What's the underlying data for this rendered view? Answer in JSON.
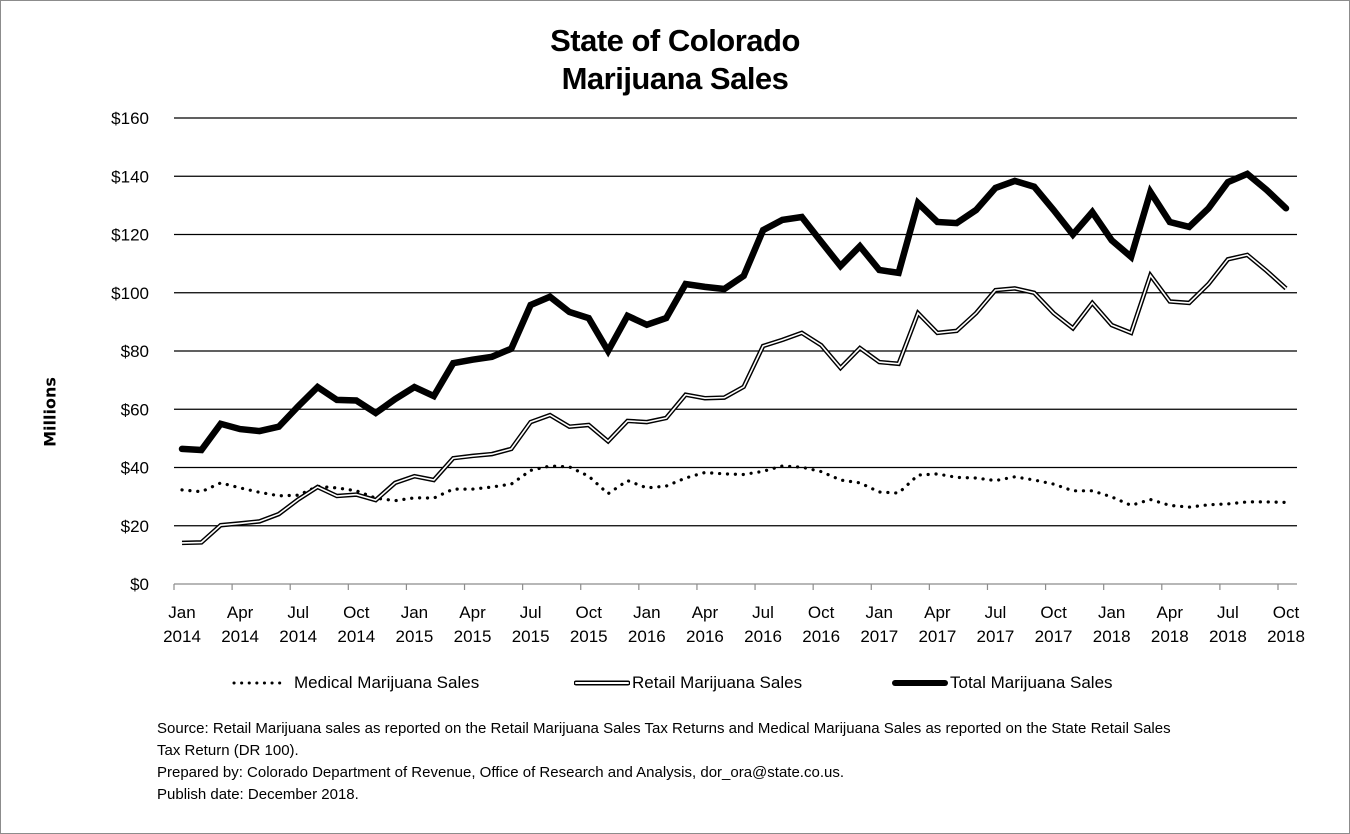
{
  "chart_data": {
    "type": "line",
    "title": [
      "State of Colorado",
      "Marijuana Sales"
    ],
    "xlabel": "",
    "ylabel": "Millions",
    "ylim": [
      0,
      160
    ],
    "y_ticks": [
      0,
      20,
      40,
      60,
      80,
      100,
      120,
      140,
      160
    ],
    "y_tick_labels": [
      "$0",
      "$20",
      "$40",
      "$60",
      "$80",
      "$100",
      "$120",
      "$140",
      "$160"
    ],
    "grid": true,
    "legend_position": "bottom",
    "x_tick_labels": [
      [
        "Jan",
        "2014"
      ],
      [
        "Apr",
        "2014"
      ],
      [
        "Jul",
        "2014"
      ],
      [
        "Oct",
        "2014"
      ],
      [
        "Jan",
        "2015"
      ],
      [
        "Apr",
        "2015"
      ],
      [
        "Jul",
        "2015"
      ],
      [
        "Oct",
        "2015"
      ],
      [
        "Jan",
        "2016"
      ],
      [
        "Apr",
        "2016"
      ],
      [
        "Jul",
        "2016"
      ],
      [
        "Oct",
        "2016"
      ],
      [
        "Jan",
        "2017"
      ],
      [
        "Apr",
        "2017"
      ],
      [
        "Jul",
        "2017"
      ],
      [
        "Oct",
        "2017"
      ],
      [
        "Jan",
        "2018"
      ],
      [
        "Apr",
        "2018"
      ],
      [
        "Jul",
        "2018"
      ],
      [
        "Oct",
        "2018"
      ]
    ],
    "x": [
      "2014-01",
      "2014-02",
      "2014-03",
      "2014-04",
      "2014-05",
      "2014-06",
      "2014-07",
      "2014-08",
      "2014-09",
      "2014-10",
      "2014-11",
      "2014-12",
      "2015-01",
      "2015-02",
      "2015-03",
      "2015-04",
      "2015-05",
      "2015-06",
      "2015-07",
      "2015-08",
      "2015-09",
      "2015-10",
      "2015-11",
      "2015-12",
      "2016-01",
      "2016-02",
      "2016-03",
      "2016-04",
      "2016-05",
      "2016-06",
      "2016-07",
      "2016-08",
      "2016-09",
      "2016-10",
      "2016-11",
      "2016-12",
      "2017-01",
      "2017-02",
      "2017-03",
      "2017-04",
      "2017-05",
      "2017-06",
      "2017-07",
      "2017-08",
      "2017-09",
      "2017-10",
      "2017-11",
      "2017-12",
      "2018-01",
      "2018-02",
      "2018-03",
      "2018-04",
      "2018-05",
      "2018-06",
      "2018-07",
      "2018-08",
      "2018-09",
      "2018-10"
    ],
    "series": [
      {
        "name": "Medical Marijuana Sales",
        "style": "dotted",
        "values": [
          32.3,
          31.7,
          34.7,
          33.0,
          31.5,
          30.3,
          30.5,
          33.5,
          33.0,
          32.0,
          29.5,
          28.6,
          29.6,
          29.5,
          32.6,
          32.6,
          33.3,
          34.3,
          39.0,
          40.5,
          40.2,
          37.0,
          31.0,
          35.5,
          33.0,
          33.6,
          36.4,
          38.3,
          37.8,
          37.6,
          38.7,
          40.5,
          40.1,
          38.6,
          35.7,
          34.7,
          31.6,
          31.2,
          37.4,
          37.8,
          36.6,
          36.4,
          35.5,
          36.8,
          35.7,
          34.3,
          32.0,
          32.0,
          29.9,
          27.0,
          29.0,
          27.0,
          26.4,
          27.2,
          27.5,
          28.2,
          28.2,
          28.0
        ]
      },
      {
        "name": "Retail Marijuana Sales",
        "style": "double",
        "values": [
          14.1,
          14.3,
          20.2,
          20.8,
          21.5,
          24.0,
          29.0,
          33.3,
          30.2,
          30.7,
          28.8,
          34.7,
          37.0,
          35.7,
          43.2,
          44.0,
          44.6,
          46.4,
          55.6,
          58.0,
          54.0,
          54.6,
          49.0,
          56.0,
          55.6,
          57.0,
          65.0,
          63.8,
          64.0,
          67.7,
          81.7,
          83.8,
          86.2,
          82.0,
          74.2,
          81.0,
          76.2,
          75.6,
          93.0,
          86.2,
          86.9,
          93.0,
          100.9,
          101.5,
          100.0,
          93.0,
          87.8,
          96.5,
          88.9,
          86.2,
          106.0,
          97.0,
          96.5,
          103.0,
          111.5,
          113.0,
          107.5,
          101.5
        ]
      },
      {
        "name": "Total Marijuana Sales",
        "style": "thick",
        "values": [
          46.4,
          46.0,
          55.0,
          53.2,
          52.5,
          54.0,
          61.0,
          67.6,
          63.2,
          63.0,
          58.7,
          63.5,
          67.6,
          64.5,
          75.8,
          77.0,
          78.0,
          80.8,
          95.8,
          98.6,
          93.4,
          91.3,
          80.0,
          92.1,
          89.0,
          91.3,
          103.0,
          102.0,
          101.3,
          105.8,
          121.5,
          125.0,
          126.0,
          117.5,
          109.2,
          116.0,
          107.8,
          106.8,
          130.8,
          124.3,
          123.9,
          128.4,
          136.0,
          138.4,
          136.4,
          128.4,
          120.0,
          127.7,
          118.0,
          112.3,
          134.6,
          124.3,
          122.6,
          129.0,
          138.0,
          140.8,
          135.3,
          129.0
        ]
      }
    ]
  },
  "footer": {
    "source_line1": "Source: Retail  Marijuana sales as reported on the Retail  Marijuana Sales Tax Returns and Medical Marijuana Sales as reported on the State Retail Sales",
    "source_line2": "Tax Return (DR 100).",
    "prepared_by": "Prepared by: Colorado Department of Revenue, Office of Research and Analysis, dor_ora@state.co.us.",
    "publish_date": "Publish date:  December 2018."
  }
}
